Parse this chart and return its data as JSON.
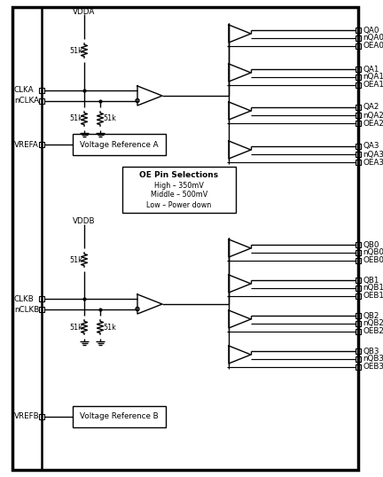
{
  "bg_color": "#ffffff",
  "line_color": "#000000",
  "lw_border": 2.5,
  "lw_inner": 1.0,
  "channel_A": {
    "vdd_label": "VDDA",
    "clk_label": "CLKA",
    "nclk_label": "nCLKA",
    "vref_label": "VREFA",
    "vref_box_label": "Voltage Reference A",
    "outputs": [
      "QA0",
      "nQA0",
      "OEA0",
      "QA1",
      "nQA1",
      "OEA1",
      "QA2",
      "nQA2",
      "OEA2",
      "QA3",
      "nQA3",
      "OEA3"
    ]
  },
  "channel_B": {
    "vdd_label": "VDDB",
    "clk_label": "CLKB",
    "nclk_label": "nCLKB",
    "vref_label": "VREFB",
    "vref_box_label": "Voltage Reference B",
    "outputs": [
      "QB0",
      "nQB0",
      "OEB0",
      "QB1",
      "nQB1",
      "OEB1",
      "QB2",
      "nQB2",
      "OEB2",
      "QB3",
      "nQB3",
      "OEB3"
    ]
  },
  "oe_box": {
    "title": "OE Pin Selections",
    "lines": [
      "High – 350mV",
      "Middle – 500mV",
      "Low – Power down"
    ]
  }
}
